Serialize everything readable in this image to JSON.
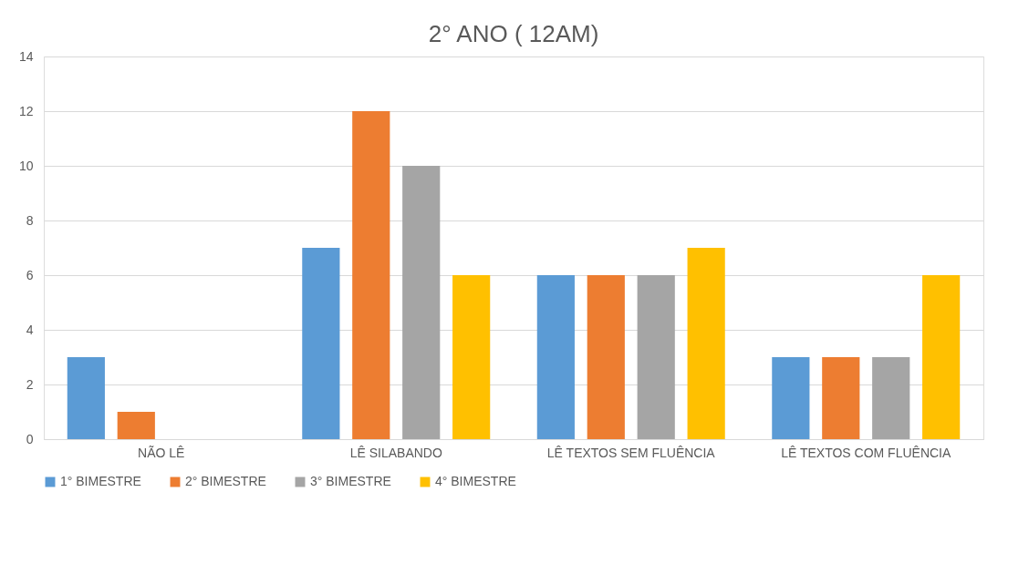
{
  "chart_data": {
    "type": "bar",
    "title": "2° ANO ( 12AM)",
    "categories": [
      "NÃO LÊ",
      "LÊ SILABANDO",
      "LÊ TEXTOS SEM FLUÊNCIA",
      "LÊ TEXTOS COM FLUÊNCIA"
    ],
    "series": [
      {
        "name": "1° BIMESTRE",
        "color": "#5b9bd5",
        "values": [
          3,
          7,
          6,
          3
        ]
      },
      {
        "name": "2° BIMESTRE",
        "color": "#ed7d31",
        "values": [
          1,
          12,
          6,
          3
        ]
      },
      {
        "name": "3° BIMESTRE",
        "color": "#a5a5a5",
        "values": [
          0,
          10,
          6,
          3
        ]
      },
      {
        "name": "4° BIMESTRE",
        "color": "#ffc000",
        "values": [
          0,
          6,
          7,
          6
        ]
      }
    ],
    "ylim": [
      0,
      14
    ],
    "yticks": [
      0,
      2,
      4,
      6,
      8,
      10,
      12,
      14
    ],
    "grid": "y",
    "legend": "bottom"
  }
}
